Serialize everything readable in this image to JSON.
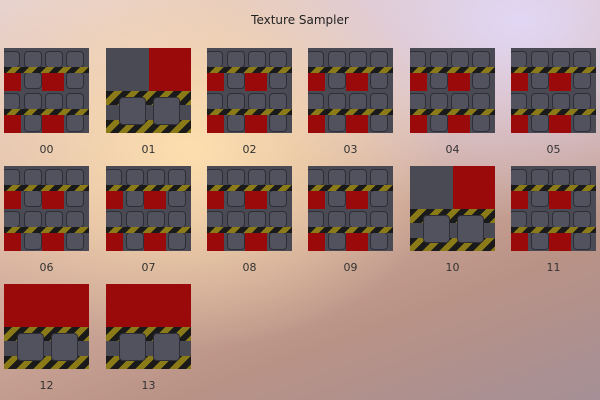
{
  "window": {
    "title": "Texture Sampler"
  },
  "colors": {
    "red": "#9b0a0a",
    "gray": "#4a4a55",
    "yellow": "#8a7a18"
  },
  "textures": [
    {
      "label": "00"
    },
    {
      "label": "01"
    },
    {
      "label": "02"
    },
    {
      "label": "03"
    },
    {
      "label": "04"
    },
    {
      "label": "05"
    },
    {
      "label": "06"
    },
    {
      "label": "07"
    },
    {
      "label": "08"
    },
    {
      "label": "09"
    },
    {
      "label": "10"
    },
    {
      "label": "11"
    },
    {
      "label": "12"
    },
    {
      "label": "13"
    }
  ]
}
